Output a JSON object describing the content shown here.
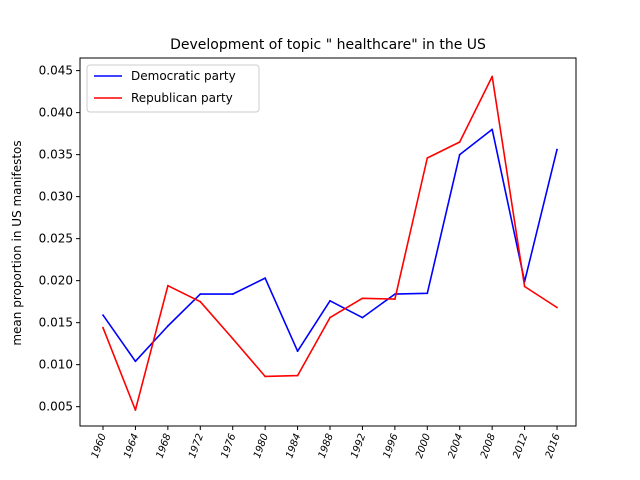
{
  "chart_data": {
    "type": "line",
    "title": "Development of topic \" healthcare\" in the US",
    "xlabel": "",
    "ylabel": "mean proportion in US manifestos",
    "categories": [
      "1960",
      "1964",
      "1968",
      "1972",
      "1976",
      "1980",
      "1984",
      "1988",
      "1992",
      "1996",
      "2000",
      "2004",
      "2008",
      "2012",
      "2016"
    ],
    "ylim": [
      0.0027,
      0.0465
    ],
    "yticks": [
      "0.005",
      "0.010",
      "0.015",
      "0.020",
      "0.025",
      "0.030",
      "0.035",
      "0.040",
      "0.045"
    ],
    "grid": false,
    "legend_position": "top-left",
    "series": [
      {
        "name": "Democratic party",
        "color": "#0000ff",
        "values": [
          0.0159,
          0.0104,
          0.0146,
          0.0184,
          0.0184,
          0.0203,
          0.0116,
          0.0176,
          0.0156,
          0.0184,
          0.0185,
          0.035,
          0.038,
          0.0199,
          0.0356
        ]
      },
      {
        "name": "Republican party",
        "color": "#ff0000",
        "values": [
          0.0144,
          0.0046,
          0.0194,
          0.0175,
          0.0131,
          0.0086,
          0.0087,
          0.0156,
          0.0179,
          0.0178,
          0.0346,
          0.0365,
          0.0443,
          0.0193,
          0.0168
        ]
      }
    ]
  }
}
